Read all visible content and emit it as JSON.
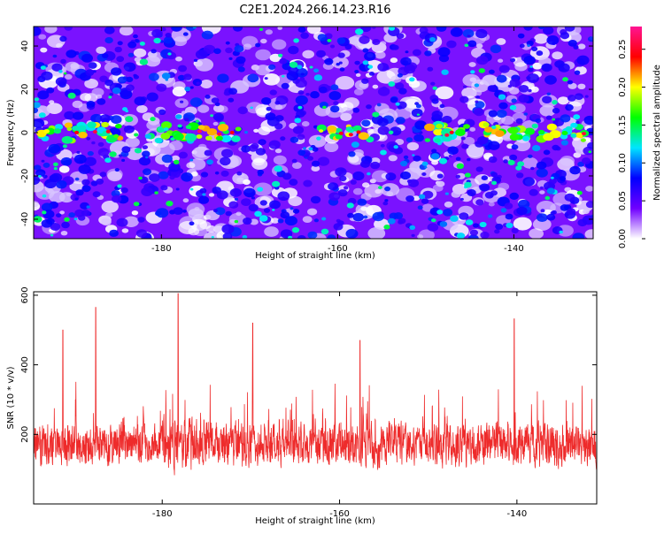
{
  "title": "C2E1.2024.266.14.23.R16",
  "chart_data": [
    {
      "type": "heatmap",
      "xlabel": "Height of straight line (km)",
      "ylabel": "Frequency (Hz)",
      "xlim": [
        -194.5,
        -131
      ],
      "ylim": [
        -49,
        49
      ],
      "x_ticks": [
        -180,
        -160,
        -140
      ],
      "y_ticks": [
        -40,
        -20,
        0,
        20,
        40
      ],
      "colorbar": {
        "label": "Normalized spectral amplitude",
        "range": [
          0.0,
          0.28
        ],
        "ticks": [
          0.0,
          0.05,
          0.1,
          0.15,
          0.2,
          0.25
        ],
        "tick_labels": [
          "0.00",
          "0.05",
          "0.10",
          "0.15",
          "0.20",
          "0.25"
        ],
        "colors": [
          "#ffffff",
          "#7000ff",
          "#0000ff",
          "#00e5ff",
          "#00ff00",
          "#ffff00",
          "#ff0000",
          "#ff1493"
        ]
      },
      "bright_band": {
        "frequency": 0,
        "segments": [
          [
            -194,
            -184
          ],
          [
            -181,
            -171
          ],
          [
            -162,
            -157
          ],
          [
            -150,
            -132
          ]
        ]
      }
    },
    {
      "type": "line",
      "xlabel": "Height of straight line (km)",
      "ylabel": "SNR (10 * v/v)",
      "xlim": [
        -194.5,
        -131
      ],
      "ylim": [
        0,
        610
      ],
      "x_ticks": [
        -180,
        -160,
        -140
      ],
      "y_ticks": [
        200,
        400,
        600
      ],
      "series": [
        {
          "color": "#ee2b2b",
          "baseline": 170,
          "spread": 80,
          "peaks": [
            {
              "x": -178.2,
              "y": 605
            },
            {
              "x": -187.5,
              "y": 565
            },
            {
              "x": -140.3,
              "y": 532
            },
            {
              "x": -169.8,
              "y": 520
            },
            {
              "x": -191.2,
              "y": 500
            },
            {
              "x": -157.7,
              "y": 470
            }
          ]
        }
      ]
    }
  ]
}
